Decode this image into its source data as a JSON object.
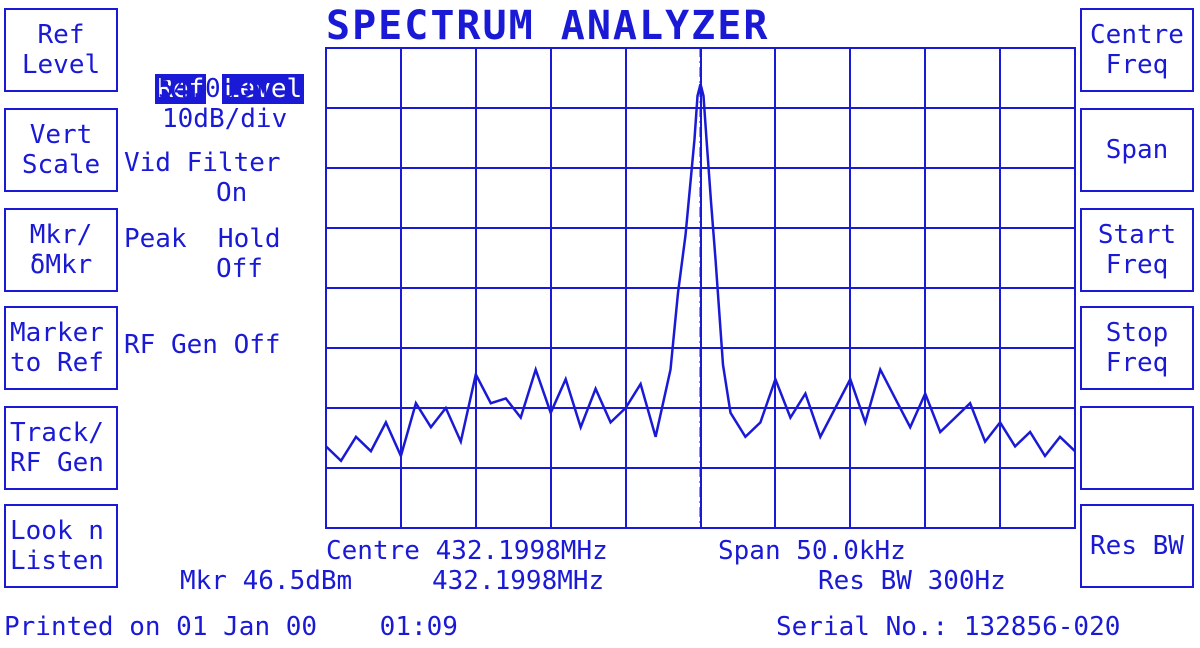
{
  "title": "SPECTRUM ANALYZER",
  "left_keys": [
    "Ref\nLevel",
    "Vert\nScale",
    "Mkr/\nδMkr",
    "Marker\nto Ref",
    "Track/\nRF Gen",
    "Look n\nListen"
  ],
  "right_keys": [
    "Centre\nFreq",
    "Span",
    "Start\nFreq",
    "Stop\nFreq",
    "",
    "Res BW"
  ],
  "status": {
    "ref_label_a": "Ref",
    "ref_label_b": "Level",
    "ref_value": "54.0dBm",
    "scale": "10dB/div",
    "vid_filter_label": "Vid Filter",
    "vid_filter_value": "On",
    "peak_hold_label": "Peak  Hold",
    "peak_hold_value": "Off",
    "rf_gen": "RF Gen Off"
  },
  "readout": {
    "centre": "Centre 432.1998MHz",
    "span": "Span 50.0kHz",
    "marker_level": "Mkr 46.5dBm",
    "marker_freq": "432.1998MHz",
    "res_bw": "Res BW 300Hz"
  },
  "footer": {
    "printed": "Printed on 01 Jan 00    01:09",
    "serial": "Serial No.: 132856-020"
  },
  "colors": {
    "trace": "#1a1ad6",
    "background": "#ffffff"
  },
  "chart_data": {
    "type": "line",
    "xlim": [
      432.1748,
      432.2248
    ],
    "ylim": [
      -46.0,
      54.0
    ],
    "marker_x": 432.1998,
    "grid": true,
    "series": [
      {
        "x": [
          432.1748,
          432.1758,
          432.1768,
          432.1778,
          432.1788,
          432.1798,
          432.1808,
          432.1818,
          432.1828,
          432.1838,
          432.1848,
          432.1858,
          432.1868,
          432.1878,
          432.1888,
          432.1898,
          432.1908,
          432.1918,
          432.1928,
          432.1938,
          432.1948,
          432.1958,
          432.1968,
          432.1978,
          432.1983,
          432.1988,
          432.1991,
          432.1994,
          432.1996,
          432.1998,
          432.2,
          432.2002,
          432.2005,
          432.2008,
          432.2013,
          432.2018,
          432.2028,
          432.2038,
          432.2048,
          432.2058,
          432.2068,
          432.2078,
          432.2088,
          432.2098,
          432.2108,
          432.2118,
          432.2128,
          432.2138,
          432.2148,
          432.2158,
          432.2168,
          432.2178,
          432.2188,
          432.2198,
          432.2208,
          432.2218,
          432.2228,
          432.2238,
          432.2248
        ],
        "y": [
          -29,
          -32,
          -27,
          -30,
          -24,
          -31,
          -20,
          -25,
          -21,
          -28,
          -14,
          -20,
          -19,
          -23,
          -13,
          -22,
          -15,
          -25,
          -17,
          -24,
          -21,
          -16,
          -27,
          -13,
          3,
          15,
          25,
          35,
          44,
          46.5,
          44,
          35,
          22,
          10,
          -12,
          -22,
          -27,
          -24,
          -15,
          -23,
          -18,
          -27,
          -21,
          -15,
          -24,
          -13,
          -19,
          -25,
          -18,
          -26,
          -23,
          -20,
          -28,
          -24,
          -29,
          -26,
          -31,
          -27,
          -30
        ]
      }
    ]
  }
}
